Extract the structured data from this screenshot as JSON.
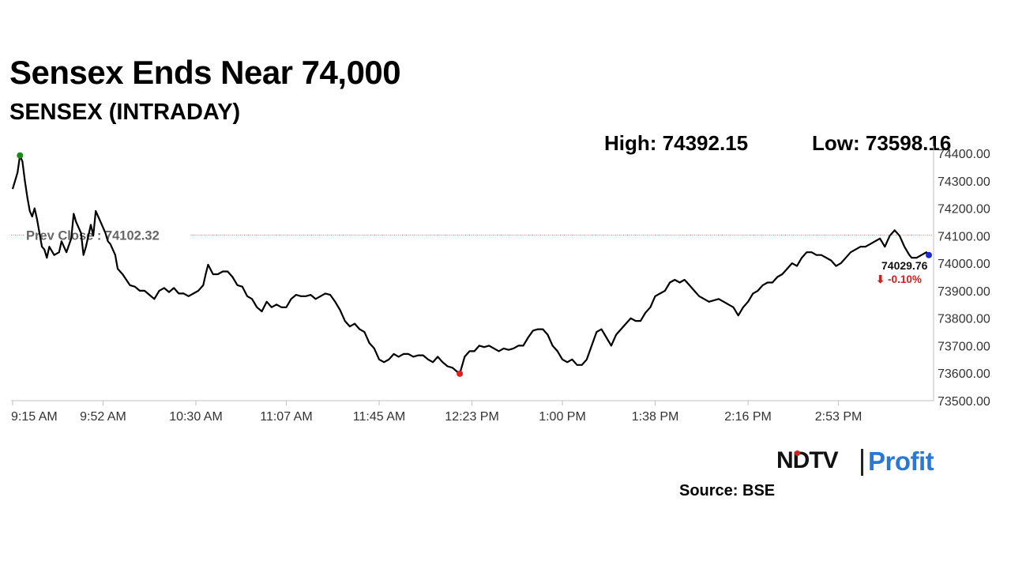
{
  "headline": "Sensex Ends Near 74,000",
  "chart_data": {
    "type": "line",
    "title": "SENSEX (INTRADAY)",
    "high_label": "High: 74392.15",
    "low_label": "Low: 73598.16",
    "high": 74392.15,
    "low": 73598.16,
    "prev_close_label": "Prev Close : 74102.32",
    "prev_close": 74102.32,
    "last_value_label": "74029.76",
    "last_value": 74029.76,
    "change_label": "⬇ -0.10%",
    "ylim": [
      73500,
      74400
    ],
    "y_ticks": [
      74400,
      74300,
      74200,
      74100,
      74000,
      73900,
      73800,
      73700,
      73600,
      73500
    ],
    "y_tick_labels": [
      "74400.00",
      "74300.00",
      "74200.00",
      "74100.00",
      "74000.00",
      "73900.00",
      "73800.00",
      "73700.00",
      "73600.00",
      "73500.00"
    ],
    "x_tick_labels": [
      "9:15 AM",
      "9:52 AM",
      "10:30 AM",
      "11:07 AM",
      "11:45 AM",
      "12:23 PM",
      "1:00 PM",
      "1:38 PM",
      "2:16 PM",
      "2:53 PM"
    ],
    "x_ticks_minutes": [
      0,
      37,
      75,
      112,
      150,
      188,
      225,
      263,
      301,
      338
    ],
    "x_range_minutes": [
      0,
      375
    ],
    "series": [
      {
        "color": "#000000",
        "points": [
          [
            0,
            74270
          ],
          [
            2,
            74330
          ],
          [
            3,
            74392.15
          ],
          [
            4,
            74370
          ],
          [
            5,
            74300
          ],
          [
            6,
            74240
          ],
          [
            7,
            74190
          ],
          [
            8,
            74170
          ],
          [
            9,
            74200
          ],
          [
            10,
            74160
          ],
          [
            11,
            74110
          ],
          [
            12,
            74060
          ],
          [
            13,
            74050
          ],
          [
            14,
            74020
          ],
          [
            15,
            74060
          ],
          [
            17,
            74030
          ],
          [
            19,
            74040
          ],
          [
            20,
            74080
          ],
          [
            22,
            74040
          ],
          [
            24,
            74090
          ],
          [
            25,
            74180
          ],
          [
            26,
            74150
          ],
          [
            28,
            74110
          ],
          [
            29,
            74030
          ],
          [
            30,
            74060
          ],
          [
            32,
            74140
          ],
          [
            33,
            74100
          ],
          [
            34,
            74190
          ],
          [
            36,
            74150
          ],
          [
            38,
            74110
          ],
          [
            39,
            74080
          ],
          [
            40,
            74070
          ],
          [
            41,
            74050
          ],
          [
            42,
            74030
          ],
          [
            43,
            73980
          ],
          [
            45,
            73960
          ],
          [
            48,
            73920
          ],
          [
            50,
            73915
          ],
          [
            52,
            73900
          ],
          [
            54,
            73900
          ],
          [
            56,
            73885
          ],
          [
            58,
            73870
          ],
          [
            60,
            73900
          ],
          [
            62,
            73910
          ],
          [
            64,
            73895
          ],
          [
            66,
            73910
          ],
          [
            68,
            73890
          ],
          [
            70,
            73890
          ],
          [
            72,
            73880
          ],
          [
            74,
            73890
          ],
          [
            76,
            73900
          ],
          [
            78,
            73920
          ],
          [
            79,
            73960
          ],
          [
            80,
            73995
          ],
          [
            82,
            73960
          ],
          [
            84,
            73960
          ],
          [
            86,
            73970
          ],
          [
            88,
            73970
          ],
          [
            90,
            73950
          ],
          [
            92,
            73920
          ],
          [
            94,
            73915
          ],
          [
            96,
            73880
          ],
          [
            98,
            73870
          ],
          [
            100,
            73840
          ],
          [
            102,
            73825
          ],
          [
            104,
            73860
          ],
          [
            106,
            73840
          ],
          [
            108,
            73850
          ],
          [
            110,
            73840
          ],
          [
            112,
            73840
          ],
          [
            114,
            73870
          ],
          [
            116,
            73885
          ],
          [
            118,
            73880
          ],
          [
            120,
            73880
          ],
          [
            122,
            73885
          ],
          [
            124,
            73870
          ],
          [
            126,
            73880
          ],
          [
            128,
            73890
          ],
          [
            130,
            73885
          ],
          [
            132,
            73860
          ],
          [
            134,
            73830
          ],
          [
            136,
            73790
          ],
          [
            138,
            73770
          ],
          [
            140,
            73780
          ],
          [
            142,
            73760
          ],
          [
            144,
            73750
          ],
          [
            146,
            73710
          ],
          [
            148,
            73690
          ],
          [
            150,
            73650
          ],
          [
            152,
            73640
          ],
          [
            154,
            73650
          ],
          [
            156,
            73670
          ],
          [
            158,
            73660
          ],
          [
            160,
            73670
          ],
          [
            162,
            73670
          ],
          [
            164,
            73660
          ],
          [
            166,
            73665
          ],
          [
            168,
            73665
          ],
          [
            170,
            73650
          ],
          [
            172,
            73640
          ],
          [
            174,
            73660
          ],
          [
            176,
            73640
          ],
          [
            178,
            73625
          ],
          [
            180,
            73620
          ],
          [
            182,
            73605
          ],
          [
            183,
            73598.16
          ],
          [
            185,
            73660
          ],
          [
            187,
            73680
          ],
          [
            189,
            73680
          ],
          [
            191,
            73700
          ],
          [
            193,
            73695
          ],
          [
            195,
            73700
          ],
          [
            197,
            73690
          ],
          [
            199,
            73680
          ],
          [
            201,
            73690
          ],
          [
            203,
            73685
          ],
          [
            205,
            73690
          ],
          [
            207,
            73700
          ],
          [
            209,
            73700
          ],
          [
            211,
            73730
          ],
          [
            213,
            73755
          ],
          [
            215,
            73760
          ],
          [
            217,
            73760
          ],
          [
            219,
            73740
          ],
          [
            221,
            73700
          ],
          [
            223,
            73680
          ],
          [
            225,
            73650
          ],
          [
            227,
            73640
          ],
          [
            229,
            73650
          ],
          [
            231,
            73630
          ],
          [
            233,
            73630
          ],
          [
            235,
            73650
          ],
          [
            237,
            73700
          ],
          [
            239,
            73750
          ],
          [
            241,
            73760
          ],
          [
            243,
            73730
          ],
          [
            245,
            73700
          ],
          [
            247,
            73740
          ],
          [
            249,
            73760
          ],
          [
            251,
            73780
          ],
          [
            253,
            73800
          ],
          [
            255,
            73790
          ],
          [
            257,
            73790
          ],
          [
            259,
            73820
          ],
          [
            261,
            73840
          ],
          [
            263,
            73880
          ],
          [
            265,
            73890
          ],
          [
            267,
            73900
          ],
          [
            269,
            73930
          ],
          [
            271,
            73940
          ],
          [
            273,
            73930
          ],
          [
            275,
            73940
          ],
          [
            277,
            73920
          ],
          [
            279,
            73900
          ],
          [
            281,
            73880
          ],
          [
            283,
            73870
          ],
          [
            285,
            73860
          ],
          [
            287,
            73865
          ],
          [
            289,
            73870
          ],
          [
            291,
            73860
          ],
          [
            293,
            73850
          ],
          [
            295,
            73840
          ],
          [
            297,
            73810
          ],
          [
            299,
            73840
          ],
          [
            301,
            73860
          ],
          [
            303,
            73890
          ],
          [
            305,
            73900
          ],
          [
            307,
            73920
          ],
          [
            309,
            73930
          ],
          [
            311,
            73930
          ],
          [
            313,
            73950
          ],
          [
            315,
            73960
          ],
          [
            317,
            73980
          ],
          [
            319,
            74000
          ],
          [
            321,
            73990
          ],
          [
            323,
            74020
          ],
          [
            325,
            74040
          ],
          [
            327,
            74040
          ],
          [
            329,
            74030
          ],
          [
            331,
            74030
          ],
          [
            333,
            74020
          ],
          [
            335,
            74010
          ],
          [
            337,
            73990
          ],
          [
            339,
            74000
          ],
          [
            341,
            74020
          ],
          [
            343,
            74040
          ],
          [
            345,
            74050
          ],
          [
            347,
            74060
          ],
          [
            349,
            74060
          ],
          [
            351,
            74070
          ],
          [
            353,
            74080
          ],
          [
            355,
            74090
          ],
          [
            357,
            74060
          ],
          [
            359,
            74100
          ],
          [
            361,
            74120
          ],
          [
            363,
            74100
          ],
          [
            365,
            74060
          ],
          [
            367,
            74030
          ],
          [
            368,
            74020
          ],
          [
            370,
            74020
          ],
          [
            372,
            74030
          ],
          [
            374,
            74040
          ],
          [
            375,
            74029.76
          ]
        ]
      }
    ],
    "high_marker_color": "#1a8a1a",
    "low_marker_color": "#e02020",
    "last_marker_color": "#1a2bd6",
    "prev_close_line_color": "#d98080",
    "change_color": "#d21f1f",
    "grid": false
  },
  "logo": {
    "ndtv": "NDTV",
    "profit": "Profit",
    "profit_color": "#2a78d6"
  },
  "source": "Source: BSE"
}
